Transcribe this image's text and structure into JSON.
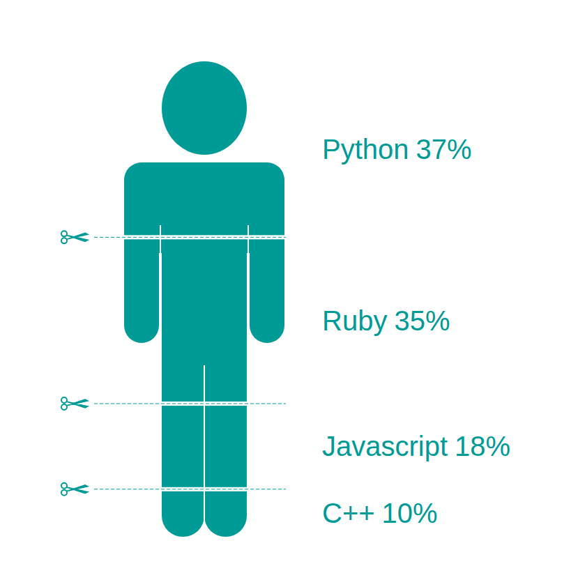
{
  "chart_data": {
    "type": "pictogram",
    "categories": [
      "Python",
      "Ruby",
      "Javascript",
      "C++"
    ],
    "values": [
      37,
      35,
      18,
      10
    ],
    "value_labels": [
      "37%",
      "35%",
      "18%",
      "10%"
    ],
    "color": "#009a97",
    "data_labels": true
  }
}
